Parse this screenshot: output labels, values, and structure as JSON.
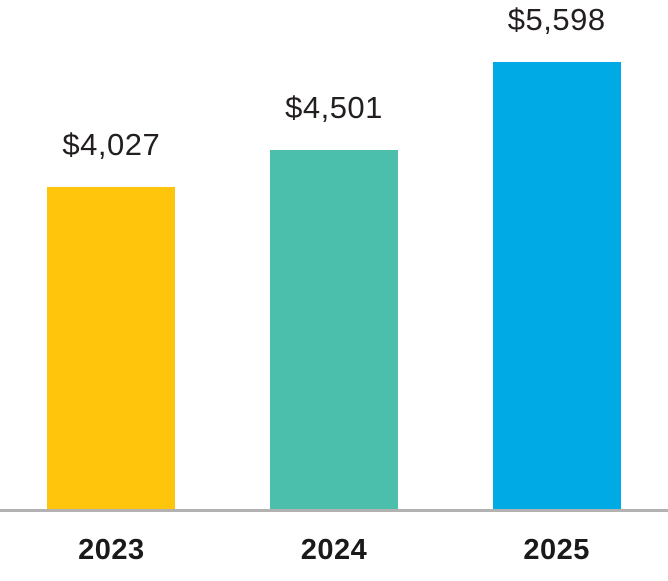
{
  "chart_data": {
    "type": "bar",
    "categories": [
      "2023",
      "2024",
      "2025"
    ],
    "values": [
      4027,
      4501,
      5598
    ],
    "value_labels": [
      "$4,027",
      "$4,501",
      "$5,598"
    ],
    "title": "",
    "xlabel": "",
    "ylabel": "",
    "ylim": [
      0,
      5750
    ],
    "grid": false,
    "legend_position": "none",
    "bar_colors": [
      "#FFC40C",
      "#4BBEAC",
      "#00ABE5"
    ],
    "axis_line_color": "#B2B2B2",
    "value_label_color": "#231F20",
    "category_label_color": "#1A1A1A",
    "background_color": "#FFFFFF"
  }
}
